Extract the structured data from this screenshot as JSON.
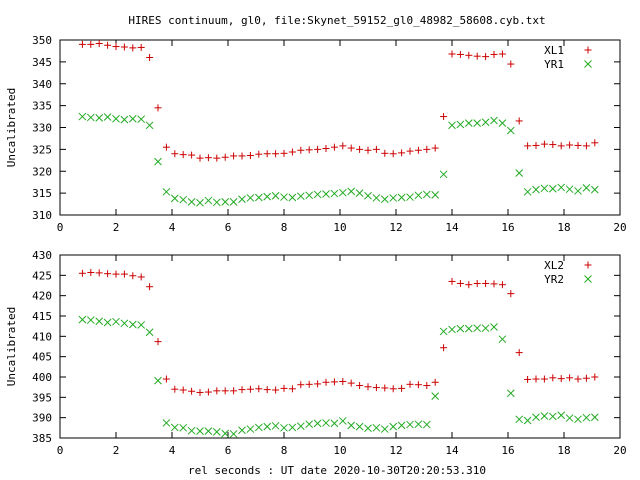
{
  "page": {
    "title": "HIRES continuum, gl0, file:Skynet_59152_gl0_48982_58608.cyb.txt",
    "xlabel": "rel seconds : UT date 2020-10-30T20:20:53.310"
  },
  "colors": {
    "red": "#cc0000",
    "green": "#22aa22"
  },
  "chart_data": [
    {
      "type": "scatter",
      "ylabel": "Uncalibrated",
      "xlim": [
        0,
        20
      ],
      "ylim": [
        310,
        350
      ],
      "xticks": [
        0,
        2,
        4,
        6,
        8,
        10,
        12,
        14,
        16,
        18,
        20
      ],
      "yticks": [
        310,
        315,
        320,
        325,
        330,
        335,
        340,
        345,
        350
      ],
      "legend_position": "top-right",
      "x": [
        0.8,
        1.1,
        1.4,
        1.7,
        2.0,
        2.3,
        2.6,
        2.9,
        3.2,
        3.5,
        3.8,
        4.1,
        4.4,
        4.7,
        5.0,
        5.3,
        5.6,
        5.9,
        6.2,
        6.5,
        6.8,
        7.1,
        7.4,
        7.7,
        8.0,
        8.3,
        8.6,
        8.9,
        9.2,
        9.5,
        9.8,
        10.1,
        10.4,
        10.7,
        11.0,
        11.3,
        11.6,
        11.9,
        12.2,
        12.5,
        12.8,
        13.1,
        13.4,
        13.7,
        14.0,
        14.3,
        14.6,
        14.9,
        15.2,
        15.5,
        15.8,
        16.1,
        16.4,
        16.7,
        17.0,
        17.3,
        17.6,
        17.9,
        18.2,
        18.5,
        18.8,
        19.1
      ],
      "series": [
        {
          "name": "XL1",
          "marker": "plus",
          "color": "#cc0000",
          "values": [
            349,
            349,
            349.2,
            348.8,
            348.5,
            348.4,
            348.2,
            348.3,
            346,
            334.5,
            325.5,
            324,
            323.8,
            323.7,
            323,
            323.1,
            323,
            323.2,
            323.5,
            323.5,
            323.6,
            323.9,
            324,
            324,
            324.1,
            324.4,
            324.8,
            324.9,
            325,
            325.2,
            325.5,
            325.8,
            325.3,
            325,
            324.8,
            325,
            324.1,
            324,
            324.2,
            324.6,
            324.8,
            325,
            325.3,
            332.5,
            346.8,
            346.7,
            346.5,
            346.3,
            346.2,
            346.7,
            346.8,
            344.5,
            331.5,
            325.8,
            325.9,
            326.2,
            326.1,
            325.8,
            326,
            325.9,
            325.8,
            326.5
          ]
        },
        {
          "name": "YR1",
          "marker": "cross",
          "color": "#22aa22",
          "values": [
            332.5,
            332.3,
            332.2,
            332.4,
            332,
            331.8,
            332,
            331.9,
            330.5,
            322.2,
            315.3,
            313.8,
            313.5,
            313,
            312.8,
            313.3,
            312.9,
            313,
            313,
            313.6,
            313.9,
            314,
            314.2,
            314.4,
            314.1,
            314,
            314.3,
            314.5,
            314.7,
            314.8,
            314.9,
            315.1,
            315.4,
            315,
            314.4,
            313.9,
            313.6,
            313.9,
            314,
            314.1,
            314.5,
            314.7,
            314.6,
            319.3,
            330.5,
            330.7,
            331,
            331,
            331.2,
            331.6,
            331,
            329.3,
            319.6,
            315.3,
            315.8,
            316.1,
            316,
            316.3,
            315.9,
            315.5,
            316.2,
            315.8
          ]
        }
      ]
    },
    {
      "type": "scatter",
      "ylabel": "Uncalibrated",
      "xlim": [
        0,
        20
      ],
      "ylim": [
        385,
        430
      ],
      "xticks": [
        0,
        2,
        4,
        6,
        8,
        10,
        12,
        14,
        16,
        18,
        20
      ],
      "yticks": [
        385,
        390,
        395,
        400,
        405,
        410,
        415,
        420,
        425,
        430
      ],
      "legend_position": "top-right",
      "x": [
        0.8,
        1.1,
        1.4,
        1.7,
        2.0,
        2.3,
        2.6,
        2.9,
        3.2,
        3.5,
        3.8,
        4.1,
        4.4,
        4.7,
        5.0,
        5.3,
        5.6,
        5.9,
        6.2,
        6.5,
        6.8,
        7.1,
        7.4,
        7.7,
        8.0,
        8.3,
        8.6,
        8.9,
        9.2,
        9.5,
        9.8,
        10.1,
        10.4,
        10.7,
        11.0,
        11.3,
        11.6,
        11.9,
        12.2,
        12.5,
        12.8,
        13.1,
        13.4,
        13.7,
        14.0,
        14.3,
        14.6,
        14.9,
        15.2,
        15.5,
        15.8,
        16.1,
        16.4,
        16.7,
        17.0,
        17.3,
        17.6,
        17.9,
        18.2,
        18.5,
        18.8,
        19.1
      ],
      "series": [
        {
          "name": "XL2",
          "marker": "plus",
          "color": "#cc0000",
          "values": [
            425.5,
            425.7,
            425.6,
            425.4,
            425.3,
            425.3,
            424.9,
            424.6,
            422.2,
            408.7,
            399.5,
            397,
            396.8,
            396.5,
            396.2,
            396.3,
            396.6,
            396.6,
            396.6,
            396.9,
            397,
            397.1,
            396.9,
            396.8,
            397.2,
            397.1,
            398.1,
            398.2,
            398.3,
            398.7,
            398.8,
            398.9,
            398.5,
            397.9,
            397.6,
            397.4,
            397.3,
            397.1,
            397.2,
            398.2,
            398.1,
            397.9,
            398.7,
            407.2,
            423.5,
            423,
            422.7,
            423,
            423,
            422.9,
            422.7,
            420.5,
            406,
            399.4,
            399.5,
            399.5,
            399.8,
            399.6,
            399.8,
            399.5,
            399.7,
            400
          ]
        },
        {
          "name": "YR2",
          "marker": "cross",
          "color": "#22aa22",
          "values": [
            414.1,
            414,
            413.7,
            413.4,
            413.6,
            413.2,
            412.9,
            412.8,
            411,
            399.1,
            388.7,
            387.6,
            387.5,
            386.8,
            386.7,
            386.7,
            386.5,
            386.1,
            386,
            386.9,
            387.2,
            387.6,
            387.8,
            388,
            387.5,
            387.6,
            387.9,
            388.4,
            388.6,
            388.7,
            388.6,
            389.2,
            388.1,
            387.8,
            387.4,
            387.5,
            387.2,
            387.8,
            388.1,
            388.3,
            388.4,
            388.3,
            395.3,
            411.2,
            411.7,
            411.9,
            411.9,
            412,
            412,
            412.3,
            409.3,
            396,
            389.6,
            389.3,
            390.1,
            390.4,
            390.3,
            390.6,
            389.9,
            389.6,
            390,
            390.1
          ]
        }
      ]
    }
  ]
}
